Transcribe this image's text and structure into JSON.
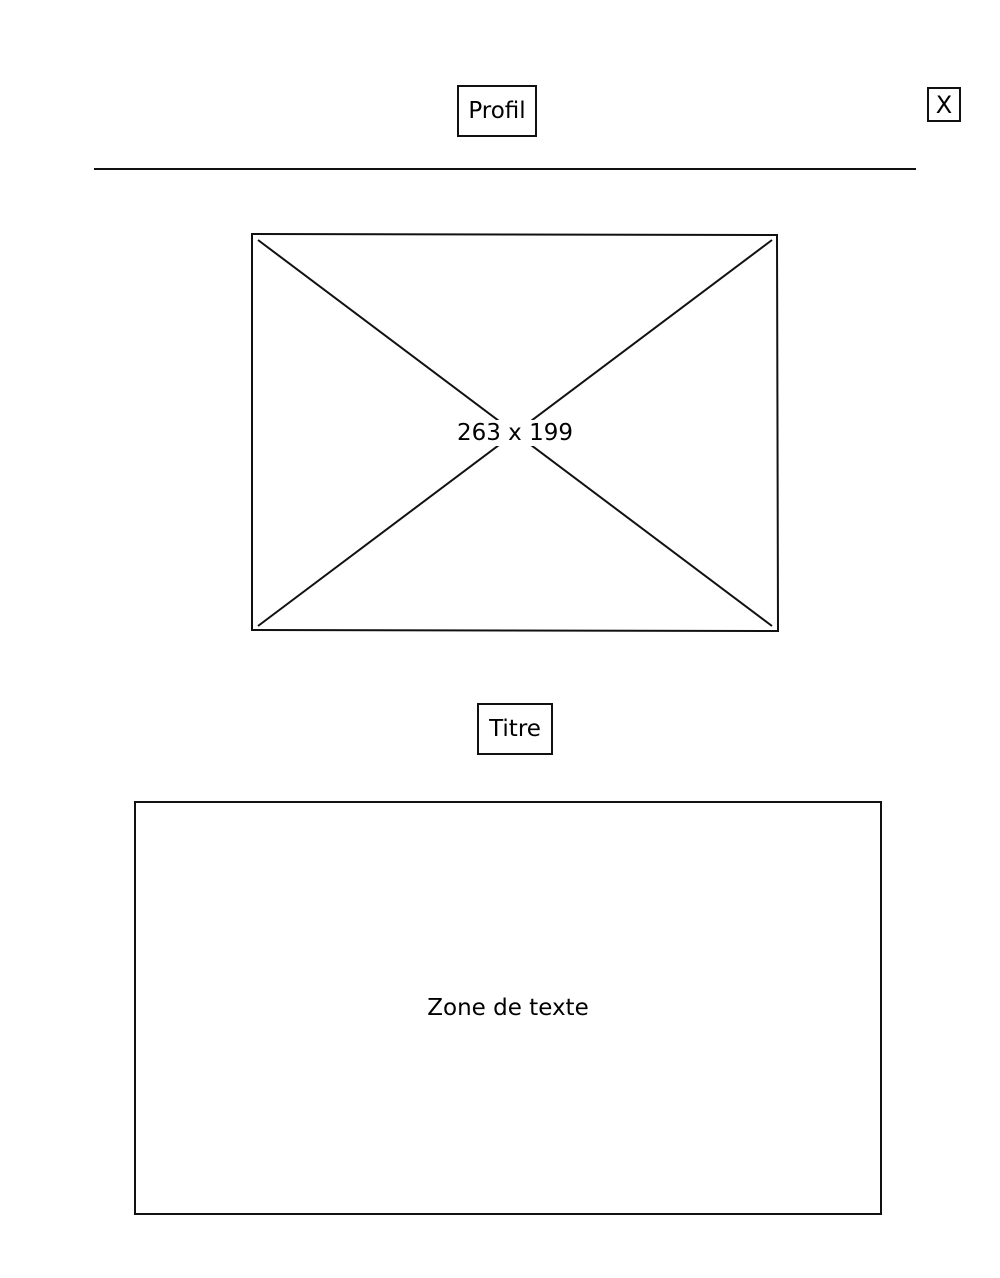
{
  "header": {
    "title": "Profil",
    "close_label": "X"
  },
  "image_placeholder": {
    "label": "263 x 199"
  },
  "section": {
    "title": "Titre"
  },
  "text_area": {
    "placeholder": "Zone de texte"
  }
}
